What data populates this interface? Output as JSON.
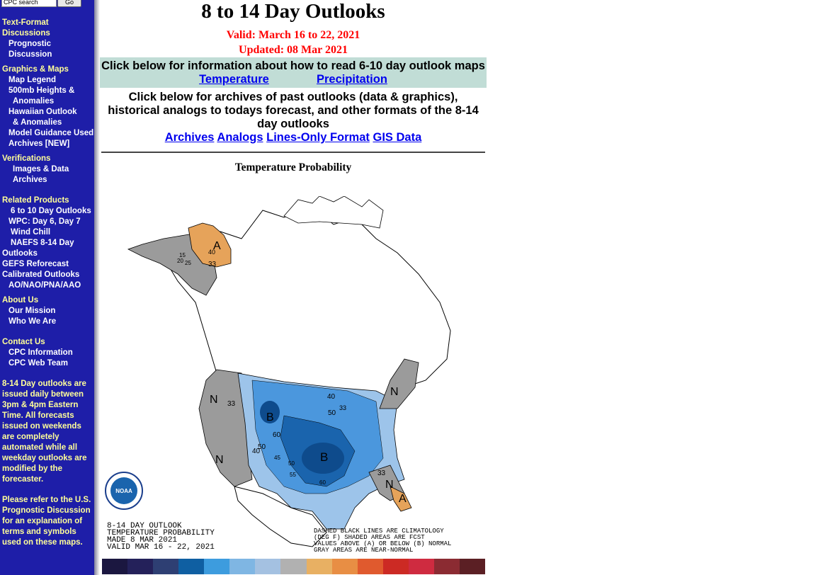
{
  "search": {
    "placeholder": "CPC search",
    "go_label": "Go"
  },
  "sidebar": {
    "sections": [
      {
        "head": "Text-Format Discussions",
        "items": [
          "Prognostic",
          "Discussion"
        ]
      },
      {
        "head": "Graphics & Maps",
        "items": [
          "Map Legend",
          "500mb Heights &",
          "Anomalies",
          "Hawaiian Outlook",
          "& Anomalies",
          "Model Guidance Used",
          "Archives [NEW]"
        ]
      },
      {
        "head": "Verifications",
        "items": [
          "Images & Data",
          "Archives"
        ]
      },
      {
        "head": "Related Products",
        "items": [
          "6 to 10 Day Outlooks",
          "WPC: Day 6, Day 7",
          "Wind Chill",
          "NAEFS 8-14 Day",
          "Outlooks",
          "GEFS Reforecast",
          "Calibrated Outlooks",
          "AO/NAO/PNA/AAO"
        ]
      },
      {
        "head": "About Us",
        "items": [
          "Our Mission",
          "Who We Are"
        ]
      },
      {
        "head": "Contact Us",
        "items": [
          "CPC Information",
          "CPC Web Team"
        ]
      }
    ],
    "note1": "8-14 Day outlooks are issued daily between 3pm & 4pm Eastern Time. All forecasts issued on weekends are completely automated while all weekday outlooks are modified by the forecaster.",
    "note2": "Please refer to the U.S. Prognostic Discussion for an explanation of terms and symbols used on these maps."
  },
  "main": {
    "title": "8 to 14 Day Outlooks",
    "valid": "Valid: March 16 to 22, 2021",
    "updated": "Updated: 08 Mar 2021",
    "info_text": "Click below for information about how to read 6-10 day outlook maps",
    "info_links": {
      "temperature": "Temperature",
      "precipitation": "Precipitation"
    },
    "archive_text": "Click below for archives of past outlooks (data & graphics), historical analogs to todays forecast, and other formats of the 8-14 day outlooks",
    "archive_links": {
      "archives": "Archives",
      "analogs": "Analogs",
      "lines_only": "Lines-Only Format",
      "gis": "GIS Data"
    },
    "map_title": "Temperature Probability"
  },
  "map": {
    "caption_left": [
      "8-14 DAY OUTLOOK",
      "TEMPERATURE PROBABILITY",
      "MADE  8 MAR 2021",
      "VALID  MAR 16 - 22, 2021"
    ],
    "caption_right": [
      "DASHED BLACK LINES ARE CLIMATOLOGY",
      "(DEG F) SHADED AREAS ARE FCST",
      "VALUES ABOVE (A) OR BELOW (B) NORMAL",
      "GRAY AREAS ARE NEAR-NORMAL"
    ],
    "noaa_label": "NOAA",
    "labels": [
      "A",
      "40",
      "33",
      "15",
      "20",
      "25",
      "N",
      "33",
      "N",
      "B",
      "60",
      "50",
      "40",
      "B",
      "40",
      "50",
      "33",
      "N",
      "33",
      "N",
      "A",
      "45",
      "50",
      "55",
      "60"
    ],
    "colors": {
      "above": "#e6a35a",
      "near": "#9b9b9b",
      "below_light": "#9dc4ea",
      "below_mid": "#4b97dd",
      "below_dark": "#1a64ad",
      "below_darkest": "#0e4b8c"
    }
  },
  "legend_colors": [
    "#1b1740",
    "#24215a",
    "#2e3f73",
    "#0f5fa2",
    "#3d9cde",
    "#7fb6e3",
    "#a4c1e1",
    "#b1b1b1",
    "#e8b063",
    "#e88e44",
    "#e05a2e",
    "#cc2a24",
    "#cf2b40",
    "#8b2b32",
    "#5b1f24"
  ]
}
